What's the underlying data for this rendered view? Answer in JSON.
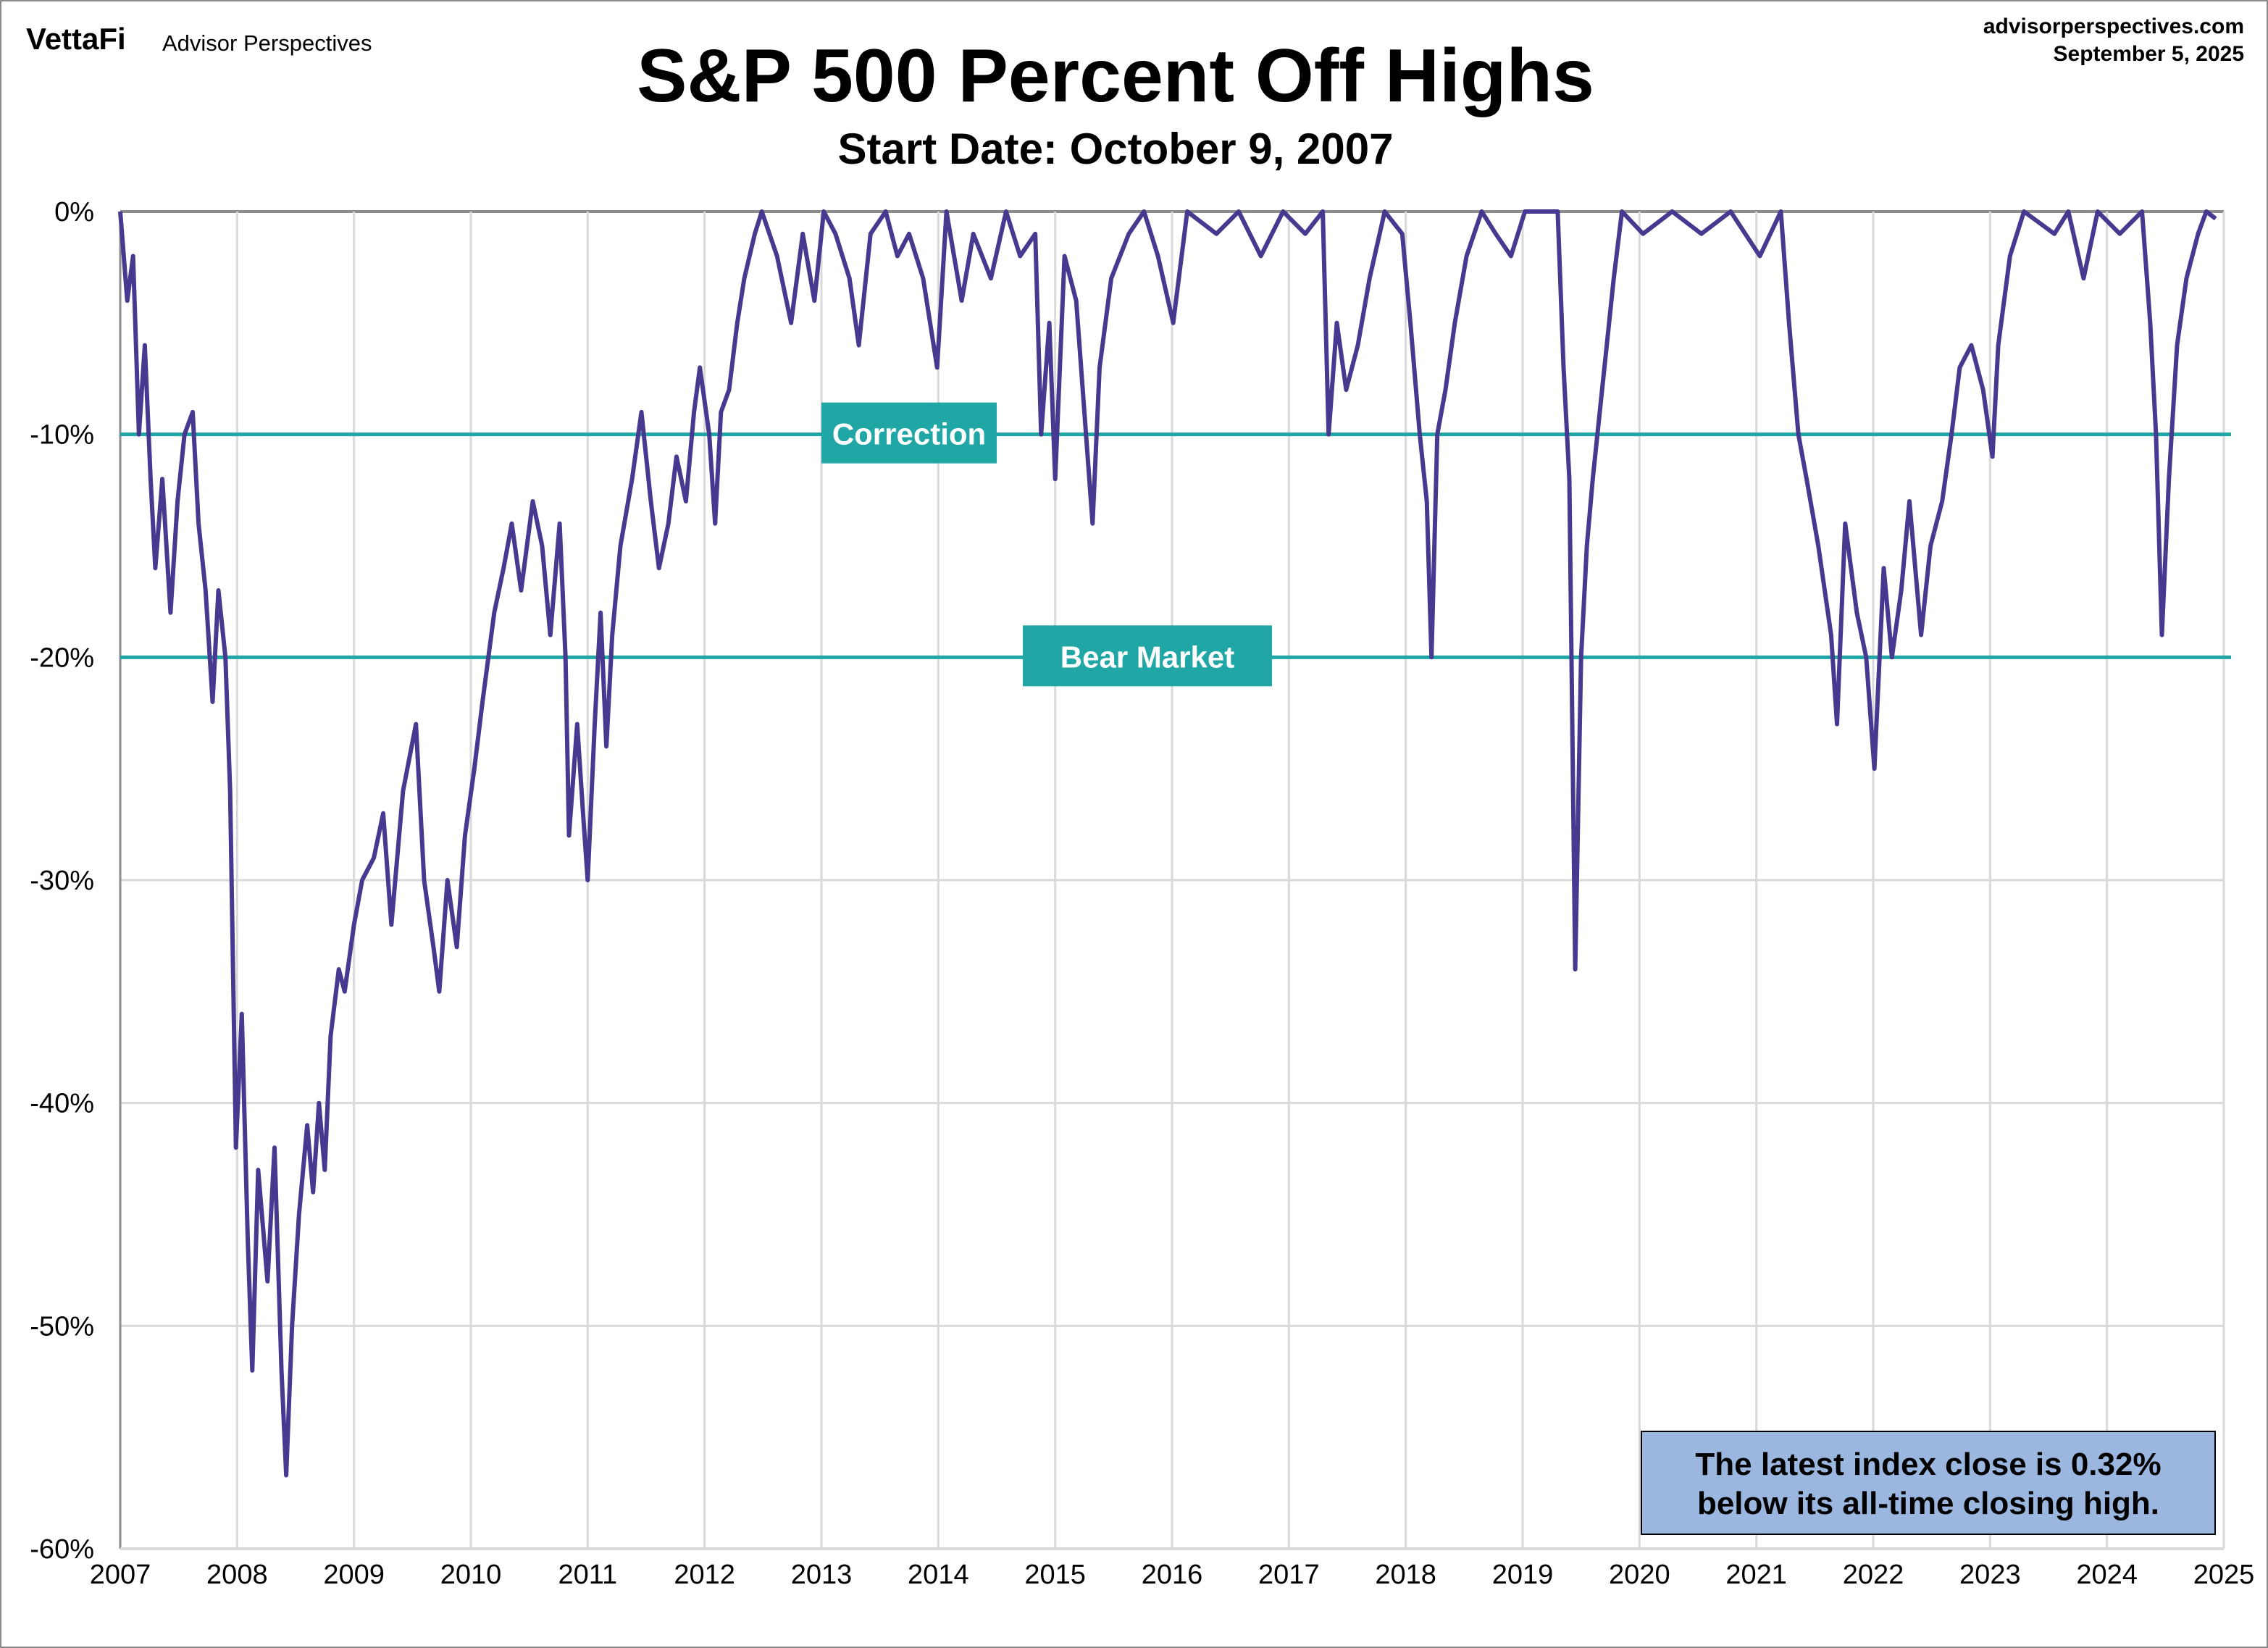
{
  "header": {
    "logo_brand": "VettaFi",
    "logo_sub": "Advisor Perspectives",
    "site": "advisorperspectives.com",
    "date": "September 5, 2025"
  },
  "chart_data": {
    "type": "line",
    "title": "S&P 500 Percent Off Highs",
    "subtitle": "Start Date: October 9, 2007",
    "xlabel": "",
    "ylabel": "",
    "xlim": [
      2007,
      2025
    ],
    "ylim": [
      -60,
      0
    ],
    "x_ticks": [
      "2007",
      "2008",
      "2009",
      "2010",
      "2011",
      "2012",
      "2013",
      "2014",
      "2015",
      "2016",
      "2017",
      "2018",
      "2019",
      "2020",
      "2021",
      "2022",
      "2023",
      "2024",
      "2025"
    ],
    "y_ticks": [
      {
        "value": 0,
        "label": "0%"
      },
      {
        "value": -10,
        "label": "-10%"
      },
      {
        "value": -20,
        "label": "-20%"
      },
      {
        "value": -30,
        "label": "-30%"
      },
      {
        "value": -40,
        "label": "-40%"
      },
      {
        "value": -50,
        "label": "-50%"
      },
      {
        "value": -60,
        "label": "-60%"
      }
    ],
    "grid": true,
    "line_color": "#46398f",
    "reference_color": "#21a6a6",
    "reference_lines": [
      {
        "value": -10,
        "label": "Correction"
      },
      {
        "value": -20,
        "label": "Bear Market"
      }
    ],
    "annotation": {
      "line1": "The latest index close is 0.32%",
      "line2": "below its all-time closing high.",
      "fill": "#9bb7e0"
    },
    "series": [
      {
        "points": [
          [
            2007.0,
            0
          ],
          [
            2007.06,
            -4
          ],
          [
            2007.11,
            -2
          ],
          [
            2007.16,
            -10
          ],
          [
            2007.21,
            -6
          ],
          [
            2007.26,
            -12
          ],
          [
            2007.3,
            -16
          ],
          [
            2007.36,
            -12
          ],
          [
            2007.43,
            -18
          ],
          [
            2007.49,
            -13
          ],
          [
            2007.55,
            -10
          ],
          [
            2007.62,
            -9
          ],
          [
            2007.67,
            -14
          ],
          [
            2007.73,
            -17
          ],
          [
            2007.79,
            -22
          ],
          [
            2007.84,
            -17
          ],
          [
            2007.9,
            -20
          ],
          [
            2007.94,
            -26
          ],
          [
            2007.99,
            -42
          ],
          [
            2008.04,
            -36
          ],
          [
            2008.09,
            -46
          ],
          [
            2008.13,
            -52
          ],
          [
            2008.18,
            -43
          ],
          [
            2008.26,
            -48
          ],
          [
            2008.32,
            -42
          ],
          [
            2008.38,
            -52
          ],
          [
            2008.42,
            -56.7
          ],
          [
            2008.47,
            -50
          ],
          [
            2008.53,
            -45
          ],
          [
            2008.6,
            -41
          ],
          [
            2008.65,
            -44
          ],
          [
            2008.7,
            -40
          ],
          [
            2008.75,
            -43
          ],
          [
            2008.8,
            -37
          ],
          [
            2008.87,
            -34
          ],
          [
            2008.92,
            -35
          ],
          [
            2009.0,
            -32
          ],
          [
            2009.07,
            -30
          ],
          [
            2009.17,
            -29
          ],
          [
            2009.25,
            -27
          ],
          [
            2009.32,
            -32
          ],
          [
            2009.42,
            -26
          ],
          [
            2009.53,
            -23
          ],
          [
            2009.6,
            -30
          ],
          [
            2009.68,
            -33
          ],
          [
            2009.73,
            -35
          ],
          [
            2009.8,
            -30
          ],
          [
            2009.88,
            -33
          ],
          [
            2009.95,
            -28
          ],
          [
            2010.03,
            -25
          ],
          [
            2010.1,
            -22
          ],
          [
            2010.2,
            -18
          ],
          [
            2010.28,
            -16
          ],
          [
            2010.35,
            -14
          ],
          [
            2010.43,
            -17
          ],
          [
            2010.53,
            -13
          ],
          [
            2010.61,
            -15
          ],
          [
            2010.68,
            -19
          ],
          [
            2010.76,
            -14
          ],
          [
            2010.81,
            -20
          ],
          [
            2010.84,
            -28
          ],
          [
            2010.91,
            -23
          ],
          [
            2010.96,
            -27
          ],
          [
            2011.0,
            -30
          ],
          [
            2011.06,
            -23
          ],
          [
            2011.11,
            -18
          ],
          [
            2011.16,
            -24
          ],
          [
            2011.21,
            -19
          ],
          [
            2011.28,
            -15
          ],
          [
            2011.38,
            -12
          ],
          [
            2011.46,
            -9
          ],
          [
            2011.54,
            -13
          ],
          [
            2011.61,
            -16
          ],
          [
            2011.69,
            -14
          ],
          [
            2011.76,
            -11
          ],
          [
            2011.84,
            -13
          ],
          [
            2011.91,
            -9
          ],
          [
            2011.96,
            -7
          ],
          [
            2012.04,
            -10
          ],
          [
            2012.09,
            -14
          ],
          [
            2012.14,
            -9
          ],
          [
            2012.21,
            -8
          ],
          [
            2012.28,
            -5
          ],
          [
            2012.34,
            -3
          ],
          [
            2012.43,
            -1
          ],
          [
            2012.49,
            0
          ],
          [
            2012.62,
            -2
          ],
          [
            2012.74,
            -5
          ],
          [
            2012.84,
            -1
          ],
          [
            2012.94,
            -4
          ],
          [
            2013.02,
            0
          ],
          [
            2013.12,
            -1
          ],
          [
            2013.24,
            -3
          ],
          [
            2013.32,
            -6
          ],
          [
            2013.42,
            -1
          ],
          [
            2013.55,
            0
          ],
          [
            2013.65,
            -2
          ],
          [
            2013.75,
            -1
          ],
          [
            2013.87,
            -3
          ],
          [
            2013.99,
            -7
          ],
          [
            2014.07,
            0
          ],
          [
            2014.2,
            -4
          ],
          [
            2014.3,
            -1
          ],
          [
            2014.45,
            -3
          ],
          [
            2014.58,
            0
          ],
          [
            2014.7,
            -2
          ],
          [
            2014.83,
            -1
          ],
          [
            2014.88,
            -10
          ],
          [
            2014.95,
            -5
          ],
          [
            2015.0,
            -12
          ],
          [
            2015.08,
            -2
          ],
          [
            2015.18,
            -4
          ],
          [
            2015.25,
            -9
          ],
          [
            2015.32,
            -14
          ],
          [
            2015.38,
            -7
          ],
          [
            2015.48,
            -3
          ],
          [
            2015.63,
            -1
          ],
          [
            2015.76,
            0
          ],
          [
            2015.88,
            -2
          ],
          [
            2016.01,
            -5
          ],
          [
            2016.13,
            0
          ],
          [
            2016.38,
            -1
          ],
          [
            2016.57,
            0
          ],
          [
            2016.76,
            -2
          ],
          [
            2016.95,
            0
          ],
          [
            2017.14,
            -1
          ],
          [
            2017.29,
            0
          ],
          [
            2017.34,
            -10
          ],
          [
            2017.41,
            -5
          ],
          [
            2017.49,
            -8
          ],
          [
            2017.59,
            -6
          ],
          [
            2017.69,
            -3
          ],
          [
            2017.82,
            0
          ],
          [
            2017.97,
            -1
          ],
          [
            2018.04,
            -5
          ],
          [
            2018.12,
            -10
          ],
          [
            2018.18,
            -13
          ],
          [
            2018.22,
            -20
          ],
          [
            2018.27,
            -10
          ],
          [
            2018.34,
            -8
          ],
          [
            2018.42,
            -5
          ],
          [
            2018.52,
            -2
          ],
          [
            2018.65,
            0
          ],
          [
            2018.77,
            -1
          ],
          [
            2018.9,
            -2
          ],
          [
            2019.02,
            0
          ],
          [
            2019.3,
            0
          ],
          [
            2019.35,
            -7
          ],
          [
            2019.4,
            -12
          ],
          [
            2019.45,
            -34
          ],
          [
            2019.5,
            -20
          ],
          [
            2019.55,
            -15
          ],
          [
            2019.6,
            -12
          ],
          [
            2019.68,
            -8
          ],
          [
            2019.78,
            -3
          ],
          [
            2019.85,
            0
          ],
          [
            2020.03,
            -1
          ],
          [
            2020.28,
            0
          ],
          [
            2020.53,
            -1
          ],
          [
            2020.78,
            0
          ],
          [
            2021.03,
            -2
          ],
          [
            2021.21,
            0
          ],
          [
            2021.28,
            -5
          ],
          [
            2021.36,
            -10
          ],
          [
            2021.43,
            -12
          ],
          [
            2021.53,
            -15
          ],
          [
            2021.64,
            -19
          ],
          [
            2021.69,
            -23
          ],
          [
            2021.76,
            -14
          ],
          [
            2021.86,
            -18
          ],
          [
            2021.94,
            -20
          ],
          [
            2022.01,
            -25
          ],
          [
            2022.09,
            -16
          ],
          [
            2022.16,
            -20
          ],
          [
            2022.24,
            -17
          ],
          [
            2022.31,
            -13
          ],
          [
            2022.41,
            -19
          ],
          [
            2022.49,
            -15
          ],
          [
            2022.59,
            -13
          ],
          [
            2022.67,
            -10
          ],
          [
            2022.74,
            -7
          ],
          [
            2022.84,
            -6
          ],
          [
            2022.94,
            -8
          ],
          [
            2023.02,
            -11
          ],
          [
            2023.07,
            -6
          ],
          [
            2023.17,
            -2
          ],
          [
            2023.29,
            0
          ],
          [
            2023.55,
            -1
          ],
          [
            2023.67,
            0
          ],
          [
            2023.8,
            -3
          ],
          [
            2023.92,
            0
          ],
          [
            2024.11,
            -1
          ],
          [
            2024.3,
            0
          ],
          [
            2024.37,
            -5
          ],
          [
            2024.42,
            -10
          ],
          [
            2024.47,
            -19
          ],
          [
            2024.53,
            -12
          ],
          [
            2024.6,
            -6
          ],
          [
            2024.68,
            -3
          ],
          [
            2024.78,
            -1
          ],
          [
            2024.85,
            0
          ],
          [
            2024.93,
            -0.32
          ]
        ]
      }
    ]
  }
}
